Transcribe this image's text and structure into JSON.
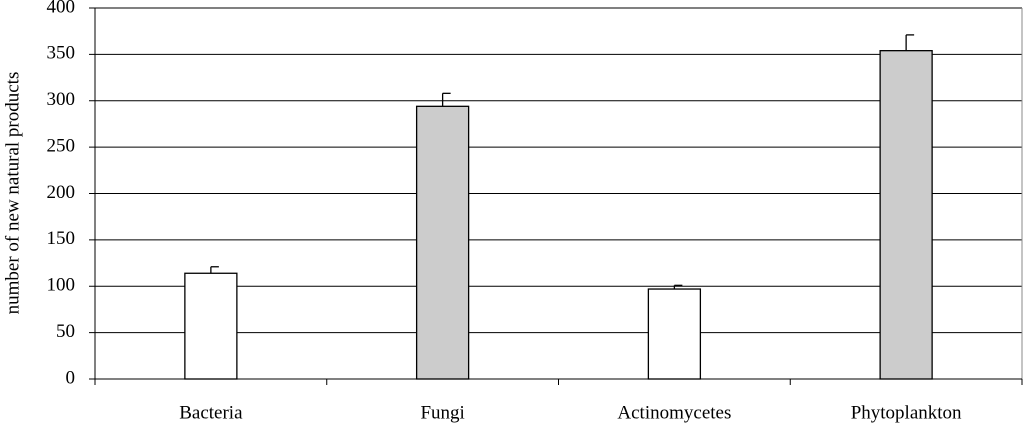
{
  "chart_data": {
    "type": "bar",
    "y_label": "number of new natural products",
    "categories": [
      "Bacteria",
      "Fungi",
      "Actinomycetes",
      "Phytoplankton"
    ],
    "values": [
      114,
      294,
      97,
      354
    ],
    "errors": [
      7,
      14,
      4,
      17
    ],
    "colors": [
      "#ffffff",
      "#cccccc",
      "#ffffff",
      "#cccccc"
    ],
    "ylim": [
      0,
      400
    ],
    "yticks": [
      0,
      50,
      100,
      150,
      200,
      250,
      300,
      350,
      400
    ],
    "grid": true
  }
}
